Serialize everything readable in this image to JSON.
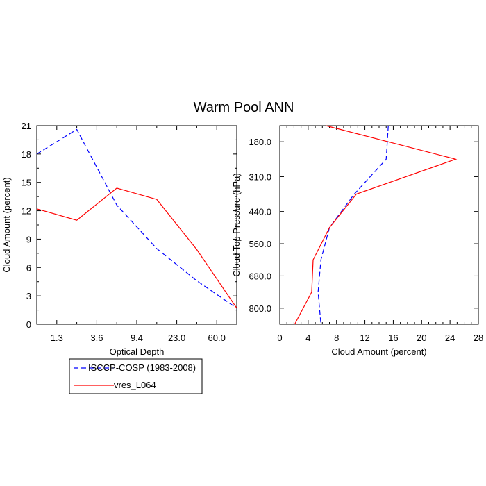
{
  "title": "Warm Pool ANN",
  "colors": {
    "obs": "#0000ff",
    "model": "#ff0000"
  },
  "legend": {
    "entries": [
      {
        "label": "ISCCP-COSP (1983-2008)",
        "color": "#0000ff",
        "dash": true
      },
      {
        "label": "vres_L064",
        "color": "#ff0000",
        "dash": false
      }
    ]
  },
  "chart_data": [
    {
      "type": "line",
      "xlabel": "Optical Depth",
      "ylabel": "Cloud Amount (percent)",
      "xticklabels": [
        "1.3",
        "3.6",
        "9.4",
        "23.0",
        "60.0"
      ],
      "yticklabels": [
        "0",
        "3",
        "6",
        "9",
        "12",
        "15",
        "18",
        "21"
      ],
      "ylim": [
        0,
        21
      ],
      "x": [
        0.3,
        1.3,
        2.3,
        3.6,
        6.0,
        9.4,
        15.0,
        23.0,
        40.0,
        60.0,
        130.0
      ],
      "series": [
        {
          "name": "ISCCP-COSP (1983-2008)",
          "color": "#0000ff",
          "dash": true,
          "values": [
            18.0,
            null,
            20.6,
            null,
            12.6,
            null,
            8.0,
            null,
            4.6,
            null,
            1.7
          ]
        },
        {
          "name": "vres_L064",
          "color": "#ff0000",
          "dash": false,
          "values": [
            12.2,
            null,
            11.0,
            null,
            14.4,
            null,
            13.2,
            null,
            7.9,
            null,
            1.7
          ]
        }
      ]
    },
    {
      "type": "line",
      "xlabel": "Cloud Amount (percent)",
      "ylabel": "Cloud Top Pressure (hPa)",
      "xticklabels": [
        "0",
        "4",
        "8",
        "12",
        "16",
        "20",
        "24",
        "28"
      ],
      "yticklabels": [
        "180.0",
        "310.0",
        "440.0",
        "560.0",
        "680.0",
        "800.0"
      ],
      "xlim": [
        0,
        28
      ],
      "ylim": [
        860,
        120
      ],
      "series": [
        {
          "name": "ISCCP-COSP (1983-2008)",
          "color": "#0000ff",
          "dash": true,
          "pressure": [
            120,
            245,
            375,
            500,
            620,
            740,
            860
          ],
          "values": [
            15.3,
            15.0,
            10.5,
            7.0,
            5.8,
            5.4,
            5.8
          ]
        },
        {
          "name": "vres_L064",
          "color": "#ff0000",
          "dash": false,
          "pressure": [
            120,
            245,
            375,
            500,
            620,
            740,
            860
          ],
          "values": [
            6.5,
            24.8,
            10.8,
            7.0,
            4.7,
            4.5,
            2.1
          ]
        }
      ]
    }
  ]
}
